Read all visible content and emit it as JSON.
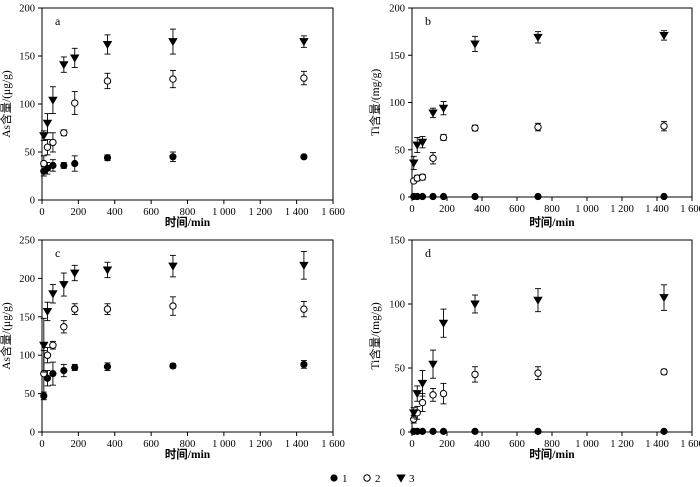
{
  "figure": {
    "legend": [
      {
        "key": "1",
        "label": "1",
        "marker": "filled-circle"
      },
      {
        "key": "2",
        "label": "2",
        "marker": "open-circle"
      },
      {
        "key": "3",
        "label": "3",
        "marker": "filled-triangle-down"
      }
    ]
  },
  "chart_data": [
    {
      "panel": "a",
      "type": "scatter",
      "xlabel": "时间/min",
      "ylabel": "As含量/(μg/g)",
      "xlim": [
        0,
        1600
      ],
      "ylim": [
        0,
        200
      ],
      "xticks": [
        0,
        200,
        400,
        600,
        800,
        1000,
        1200,
        1400,
        1600
      ],
      "xtick_labels": [
        "0",
        "200",
        "400",
        "600",
        "800",
        "1 000",
        "1 200",
        "1 400",
        "1 600"
      ],
      "yticks": [
        0,
        50,
        100,
        150,
        200
      ],
      "ytick_labels": [
        "0",
        "50",
        "100",
        "150",
        "200"
      ],
      "series": [
        {
          "name": "1",
          "marker": "filled-circle",
          "x": [
            10,
            30,
            60,
            120,
            180,
            360,
            720,
            1440
          ],
          "y": [
            30,
            33,
            36,
            36,
            38,
            44,
            45,
            45
          ],
          "err": [
            5,
            6,
            6,
            3,
            8,
            3,
            5,
            2
          ]
        },
        {
          "name": "2",
          "marker": "open-circle",
          "x": [
            10,
            30,
            60,
            120,
            180,
            360,
            720,
            1440
          ],
          "y": [
            38,
            55,
            60,
            70,
            101,
            124,
            126,
            127
          ],
          "err": [
            8,
            8,
            10,
            3,
            12,
            8,
            9,
            7
          ]
        },
        {
          "name": "3",
          "marker": "filled-triangle-down",
          "x": [
            10,
            30,
            60,
            120,
            180,
            360,
            720,
            1440
          ],
          "y": [
            67,
            80,
            104,
            141,
            148,
            162,
            165,
            165
          ],
          "err": [
            5,
            10,
            14,
            8,
            10,
            10,
            13,
            6
          ]
        }
      ]
    },
    {
      "panel": "b",
      "type": "scatter",
      "xlabel": "时间/min",
      "ylabel": "Ti含量/(mg/g)",
      "xlim": [
        0,
        1600
      ],
      "ylim": [
        0,
        200
      ],
      "xticks": [
        0,
        200,
        400,
        600,
        800,
        1000,
        1200,
        1400,
        1600
      ],
      "xtick_labels": [
        "0",
        "200",
        "400",
        "600",
        "800",
        "1 000",
        "1 200",
        "1 400",
        "1 600"
      ],
      "yticks": [
        0,
        50,
        100,
        150,
        200
      ],
      "ytick_labels": [
        "0",
        "50",
        "100",
        "150",
        "200"
      ],
      "series": [
        {
          "name": "1",
          "marker": "filled-circle",
          "x": [
            10,
            30,
            60,
            120,
            180,
            360,
            720,
            1440
          ],
          "y": [
            0.5,
            0.5,
            0.5,
            0.5,
            0.5,
            0.5,
            0.5,
            0.5
          ],
          "err": [
            0,
            0,
            0,
            0,
            0,
            0,
            0,
            0
          ]
        },
        {
          "name": "2",
          "marker": "open-circle",
          "x": [
            10,
            30,
            60,
            120,
            180,
            360,
            720,
            1440
          ],
          "y": [
            17,
            20,
            21,
            41,
            63,
            73,
            74,
            75
          ],
          "err": [
            2,
            3,
            3,
            6,
            3,
            3,
            4,
            5
          ]
        },
        {
          "name": "3",
          "marker": "filled-triangle-down",
          "x": [
            10,
            30,
            60,
            120,
            180,
            360,
            720,
            1440
          ],
          "y": [
            36,
            55,
            58,
            89,
            94,
            162,
            169,
            171
          ],
          "err": [
            7,
            8,
            6,
            5,
            7,
            8,
            6,
            5
          ]
        }
      ]
    },
    {
      "panel": "c",
      "type": "scatter",
      "xlabel": "时间/min",
      "ylabel": "As含量/(μg/g)",
      "xlim": [
        0,
        1600
      ],
      "ylim": [
        0,
        250
      ],
      "xticks": [
        0,
        200,
        400,
        600,
        800,
        1000,
        1200,
        1400,
        1600
      ],
      "xtick_labels": [
        "0",
        "200",
        "400",
        "600",
        "800",
        "1 000",
        "1 200",
        "1 400",
        "1 600"
      ],
      "yticks": [
        0,
        50,
        100,
        150,
        200,
        250
      ],
      "ytick_labels": [
        "0",
        "50",
        "100",
        "150",
        "200",
        "250"
      ],
      "series": [
        {
          "name": "1",
          "marker": "filled-circle",
          "x": [
            10,
            30,
            60,
            120,
            180,
            360,
            720,
            1440
          ],
          "y": [
            47,
            70,
            76,
            80,
            84,
            85,
            86,
            88
          ],
          "err": [
            5,
            10,
            15,
            8,
            4,
            5,
            3,
            5
          ]
        },
        {
          "name": "2",
          "marker": "open-circle",
          "x": [
            10,
            30,
            60,
            120,
            180,
            360,
            720,
            1440
          ],
          "y": [
            76,
            100,
            113,
            137,
            160,
            160,
            164,
            160
          ],
          "err": [
            30,
            10,
            5,
            8,
            7,
            7,
            12,
            10
          ]
        },
        {
          "name": "3",
          "marker": "filled-triangle-down",
          "x": [
            10,
            30,
            60,
            120,
            180,
            360,
            720,
            1440
          ],
          "y": [
            113,
            157,
            180,
            192,
            207,
            211,
            216,
            217
          ],
          "err": [
            35,
            12,
            12,
            15,
            10,
            10,
            14,
            18
          ]
        }
      ]
    },
    {
      "panel": "d",
      "type": "scatter",
      "xlabel": "时间/min",
      "ylabel": "Ti含量/(mg/g)",
      "xlim": [
        0,
        1600
      ],
      "ylim": [
        0,
        150
      ],
      "xticks": [
        0,
        200,
        400,
        600,
        800,
        1000,
        1200,
        1400,
        1600
      ],
      "xtick_labels": [
        "0",
        "200",
        "400",
        "600",
        "800",
        "1 000",
        "1 200",
        "1 400",
        "1 600"
      ],
      "yticks": [
        0,
        50,
        100,
        150
      ],
      "ytick_labels": [
        "0",
        "50",
        "100",
        "150"
      ],
      "series": [
        {
          "name": "1",
          "marker": "filled-circle",
          "x": [
            10,
            30,
            60,
            120,
            180,
            360,
            720,
            1440
          ],
          "y": [
            0.5,
            0.5,
            0.5,
            0.5,
            0.5,
            0.5,
            0.5,
            0.5
          ],
          "err": [
            0,
            0,
            0,
            0,
            0,
            0,
            0,
            0
          ]
        },
        {
          "name": "2",
          "marker": "open-circle",
          "x": [
            10,
            30,
            60,
            120,
            180,
            360,
            720,
            1440
          ],
          "y": [
            10,
            15,
            23,
            29,
            30,
            45,
            46,
            47
          ],
          "err": [
            3,
            5,
            7,
            5,
            8,
            6,
            5,
            2
          ]
        },
        {
          "name": "3",
          "marker": "filled-triangle-down",
          "x": [
            10,
            30,
            60,
            120,
            180,
            360,
            720,
            1440
          ],
          "y": [
            15,
            30,
            38,
            53,
            85,
            100,
            103,
            105
          ],
          "err": [
            4,
            6,
            10,
            11,
            11,
            7,
            9,
            10
          ]
        }
      ]
    }
  ]
}
